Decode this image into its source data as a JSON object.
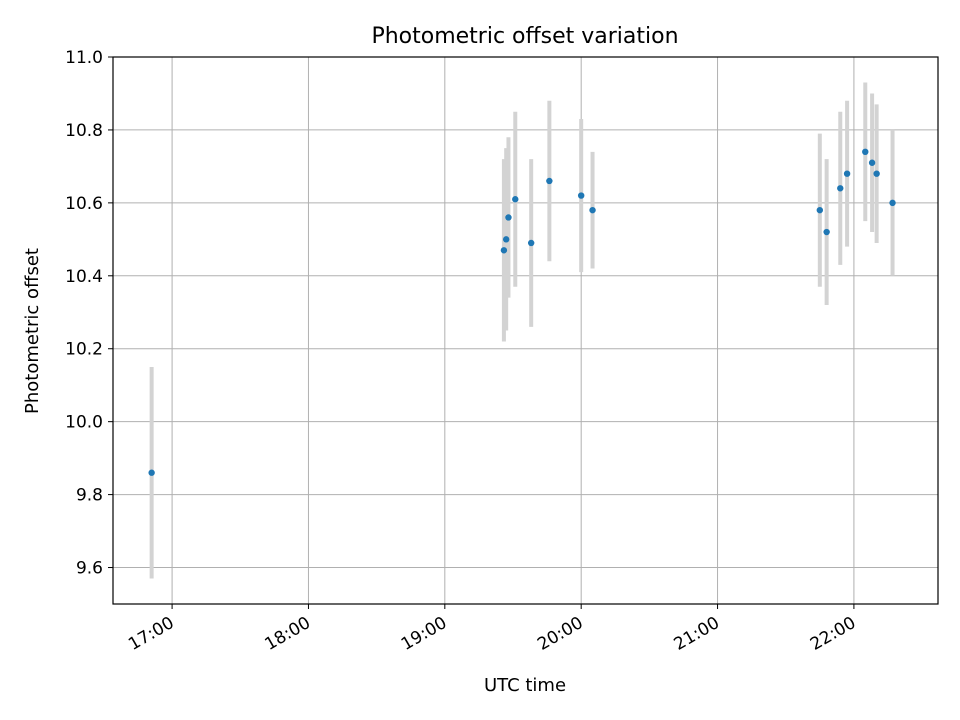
{
  "chart_data": {
    "type": "scatter",
    "title": "Photometric offset variation",
    "xlabel": "UTC time",
    "ylabel": "Photometric offset",
    "xlim": [
      "16:34",
      "22:37"
    ],
    "ylim": [
      9.5,
      11.0
    ],
    "grid": true,
    "x_ticks": [
      "17:00",
      "18:00",
      "19:00",
      "20:00",
      "21:00",
      "22:00"
    ],
    "y_ticks": [
      "9.6",
      "9.8",
      "10.0",
      "10.2",
      "10.4",
      "10.6",
      "10.8",
      "11.0"
    ],
    "marker_color": "#1f77b4",
    "errorbar_color": "#d3d3d3",
    "points": [
      {
        "t": "16:51",
        "y": 9.86,
        "err": 0.29
      },
      {
        "t": "19:26",
        "y": 10.47,
        "err": 0.25
      },
      {
        "t": "19:27",
        "y": 10.5,
        "err": 0.25
      },
      {
        "t": "19:28",
        "y": 10.56,
        "err": 0.22
      },
      {
        "t": "19:31",
        "y": 10.61,
        "err": 0.24
      },
      {
        "t": "19:38",
        "y": 10.49,
        "err": 0.23
      },
      {
        "t": "19:46",
        "y": 10.66,
        "err": 0.22
      },
      {
        "t": "20:00",
        "y": 10.62,
        "err": 0.21
      },
      {
        "t": "20:05",
        "y": 10.58,
        "err": 0.16
      },
      {
        "t": "21:45",
        "y": 10.58,
        "err": 0.21
      },
      {
        "t": "21:48",
        "y": 10.52,
        "err": 0.2
      },
      {
        "t": "21:54",
        "y": 10.64,
        "err": 0.21
      },
      {
        "t": "21:57",
        "y": 10.68,
        "err": 0.2
      },
      {
        "t": "22:05",
        "y": 10.74,
        "err": 0.19
      },
      {
        "t": "22:08",
        "y": 10.71,
        "err": 0.19
      },
      {
        "t": "22:10",
        "y": 10.68,
        "err": 0.19
      },
      {
        "t": "22:17",
        "y": 10.6,
        "err": 0.2
      }
    ]
  }
}
